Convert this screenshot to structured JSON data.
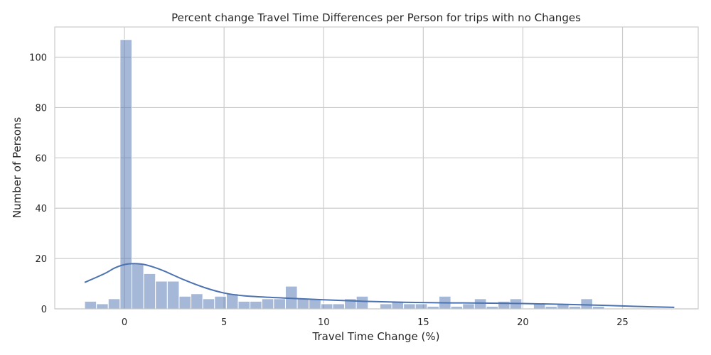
{
  "chart_data": {
    "type": "bar",
    "title": "Percent change Travel Time Differences per Person for trips with no Changes",
    "xlabel": "Travel Time Change (%)",
    "ylabel": "Number of Persons",
    "xlim": [
      -3.5,
      28.8
    ],
    "ylim": [
      0,
      112
    ],
    "xticks": [
      0,
      5,
      10,
      15,
      20,
      25
    ],
    "yticks": [
      0,
      20,
      40,
      60,
      80,
      100
    ],
    "grid": true,
    "bin_start": -2.0,
    "bin_width": 0.593,
    "bin_counts": [
      3,
      2,
      4,
      107,
      18,
      14,
      11,
      11,
      5,
      6,
      4,
      5,
      6,
      3,
      3,
      4,
      4,
      9,
      4,
      4,
      2,
      2,
      4,
      5,
      0,
      2,
      3,
      2,
      2,
      1,
      5,
      1,
      2,
      4,
      1,
      3,
      4,
      0,
      2,
      1,
      2,
      1,
      4,
      1,
      0,
      0,
      0,
      0,
      0,
      0
    ],
    "kde": {
      "x": [
        -2.0,
        -1.0,
        -0.5,
        0.0,
        0.5,
        1.0,
        1.5,
        2.0,
        3.0,
        4.0,
        5.0,
        6.0,
        8.0,
        10.0,
        12.0,
        14.0,
        16.0,
        18.0,
        20.0,
        22.0,
        24.0,
        26.0,
        27.6
      ],
      "y": [
        10.5,
        14.0,
        16.2,
        17.6,
        18.0,
        17.6,
        16.5,
        15.0,
        11.5,
        8.5,
        6.3,
        5.2,
        4.3,
        3.6,
        3.0,
        2.6,
        2.4,
        2.3,
        2.1,
        1.8,
        1.4,
        0.9,
        0.6
      ]
    }
  }
}
